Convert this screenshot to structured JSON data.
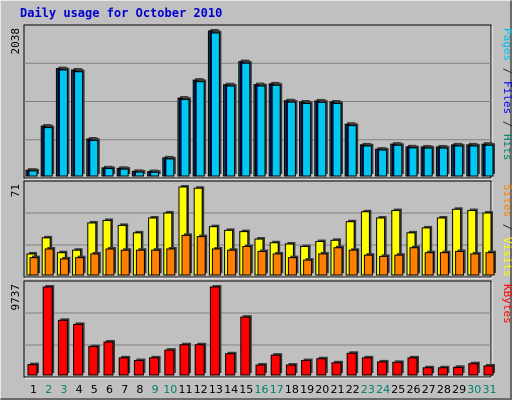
{
  "title": "Daily usage for October 2010",
  "chart_data": [
    {
      "type": "bar",
      "categories": [
        "1",
        "2",
        "3",
        "4",
        "5",
        "6",
        "7",
        "8",
        "9",
        "10",
        "11",
        "12",
        "13",
        "14",
        "15",
        "16",
        "17",
        "18",
        "19",
        "20",
        "21",
        "22",
        "23",
        "24",
        "25",
        "26",
        "27",
        "28",
        "29",
        "30",
        "31"
      ],
      "weekend_days": [
        "2",
        "3",
        "9",
        "10",
        "16",
        "17",
        "23",
        "24",
        "30",
        "31"
      ],
      "ymax_label": "2038",
      "ylim": [
        0,
        2038
      ],
      "legend": [
        {
          "text": "Pages",
          "color": "#00c0e0"
        },
        {
          "text": " / ",
          "color": "#303030"
        },
        {
          "text": "Files",
          "color": "#0000ff"
        },
        {
          "text": " / ",
          "color": "#303030"
        },
        {
          "text": "Hits",
          "color": "#00806a"
        }
      ],
      "series": [
        {
          "name": "Hits",
          "color": "#00806a",
          "values": [
            82,
            702,
            1510,
            1490,
            520,
            115,
            108,
            65,
            62,
            255,
            1095,
            1348,
            2038,
            1283,
            1608,
            1285,
            1295,
            1058,
            1040,
            1055,
            1040,
            728,
            438,
            378,
            448,
            410,
            408,
            408,
            438,
            438,
            448
          ]
        },
        {
          "name": "Files",
          "color": "#0000ff",
          "values": [
            78,
            692,
            1500,
            1478,
            510,
            110,
            102,
            60,
            58,
            248,
            1085,
            1338,
            2025,
            1275,
            1598,
            1275,
            1285,
            1048,
            1030,
            1045,
            1030,
            718,
            430,
            372,
            440,
            402,
            400,
            400,
            430,
            430,
            440
          ]
        },
        {
          "name": "Pages",
          "color": "#00c8f0",
          "values": [
            72,
            680,
            1490,
            1465,
            500,
            105,
            96,
            55,
            52,
            240,
            1075,
            1325,
            2010,
            1265,
            1585,
            1265,
            1275,
            1038,
            1020,
            1035,
            1020,
            708,
            422,
            365,
            432,
            395,
            392,
            392,
            422,
            422,
            432
          ]
        }
      ]
    },
    {
      "type": "bar",
      "categories": [
        "1",
        "2",
        "3",
        "4",
        "5",
        "6",
        "7",
        "8",
        "9",
        "10",
        "11",
        "12",
        "13",
        "14",
        "15",
        "16",
        "17",
        "18",
        "19",
        "20",
        "21",
        "22",
        "23",
        "24",
        "25",
        "26",
        "27",
        "28",
        "29",
        "30",
        "31"
      ],
      "ymax_label": "71",
      "ylim": [
        0,
        71
      ],
      "legend": [
        {
          "text": "Sites",
          "color": "#ff8000"
        },
        {
          "text": " / ",
          "color": "#303030"
        },
        {
          "text": "Visits",
          "color": "#ffff00"
        }
      ],
      "series": [
        {
          "name": "Visits",
          "color": "#ffff00",
          "values": [
            17,
            30,
            18,
            20,
            42,
            44,
            40,
            34,
            46,
            50,
            71,
            70,
            39,
            36,
            35,
            29,
            26,
            25,
            23,
            27,
            28,
            43,
            51,
            46,
            52,
            34,
            38,
            46,
            53,
            52,
            50
          ]
        },
        {
          "name": "Sites",
          "color": "#ff8000",
          "values": [
            14,
            21,
            13,
            14,
            17,
            21,
            20,
            20,
            20,
            21,
            32,
            31,
            21,
            20,
            23,
            19,
            17,
            14,
            12,
            17,
            22,
            20,
            16,
            15,
            16,
            22,
            18,
            18,
            19,
            17,
            18
          ]
        }
      ]
    },
    {
      "type": "bar",
      "categories": [
        "1",
        "2",
        "3",
        "4",
        "5",
        "6",
        "7",
        "8",
        "9",
        "10",
        "11",
        "12",
        "13",
        "14",
        "15",
        "16",
        "17",
        "18",
        "19",
        "20",
        "21",
        "22",
        "23",
        "24",
        "25",
        "26",
        "27",
        "28",
        "29",
        "30",
        "31"
      ],
      "ymax_label": "9737",
      "ylim": [
        0,
        9737
      ],
      "legend": [
        {
          "text": "KBytes",
          "color": "#ff0000"
        }
      ],
      "series": [
        {
          "name": "KBytes",
          "color": "#ff0000",
          "values": [
            1150,
            9737,
            6050,
            5600,
            3150,
            3650,
            1900,
            1600,
            1900,
            2750,
            3350,
            3350,
            9737,
            2350,
            6400,
            1100,
            2200,
            1100,
            1600,
            1800,
            1350,
            2400,
            1900,
            1450,
            1400,
            1900,
            800,
            800,
            850,
            1250,
            1000
          ]
        }
      ]
    }
  ]
}
